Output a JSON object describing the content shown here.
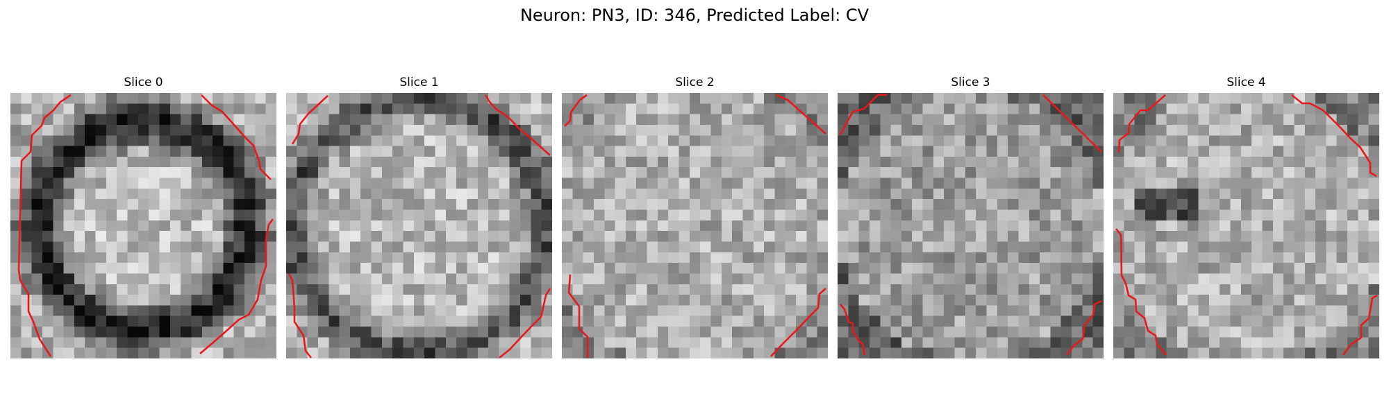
{
  "figure": {
    "title": "Neuron: PN3, ID: 346, Predicted Label: CV"
  },
  "panels": [
    {
      "title": "Slice 0"
    },
    {
      "title": "Slice 1"
    },
    {
      "title": "Slice 2"
    },
    {
      "title": "Slice 3"
    },
    {
      "title": "Slice 4"
    }
  ],
  "colors": {
    "contour": "#e8191c",
    "colormap": "gray"
  }
}
